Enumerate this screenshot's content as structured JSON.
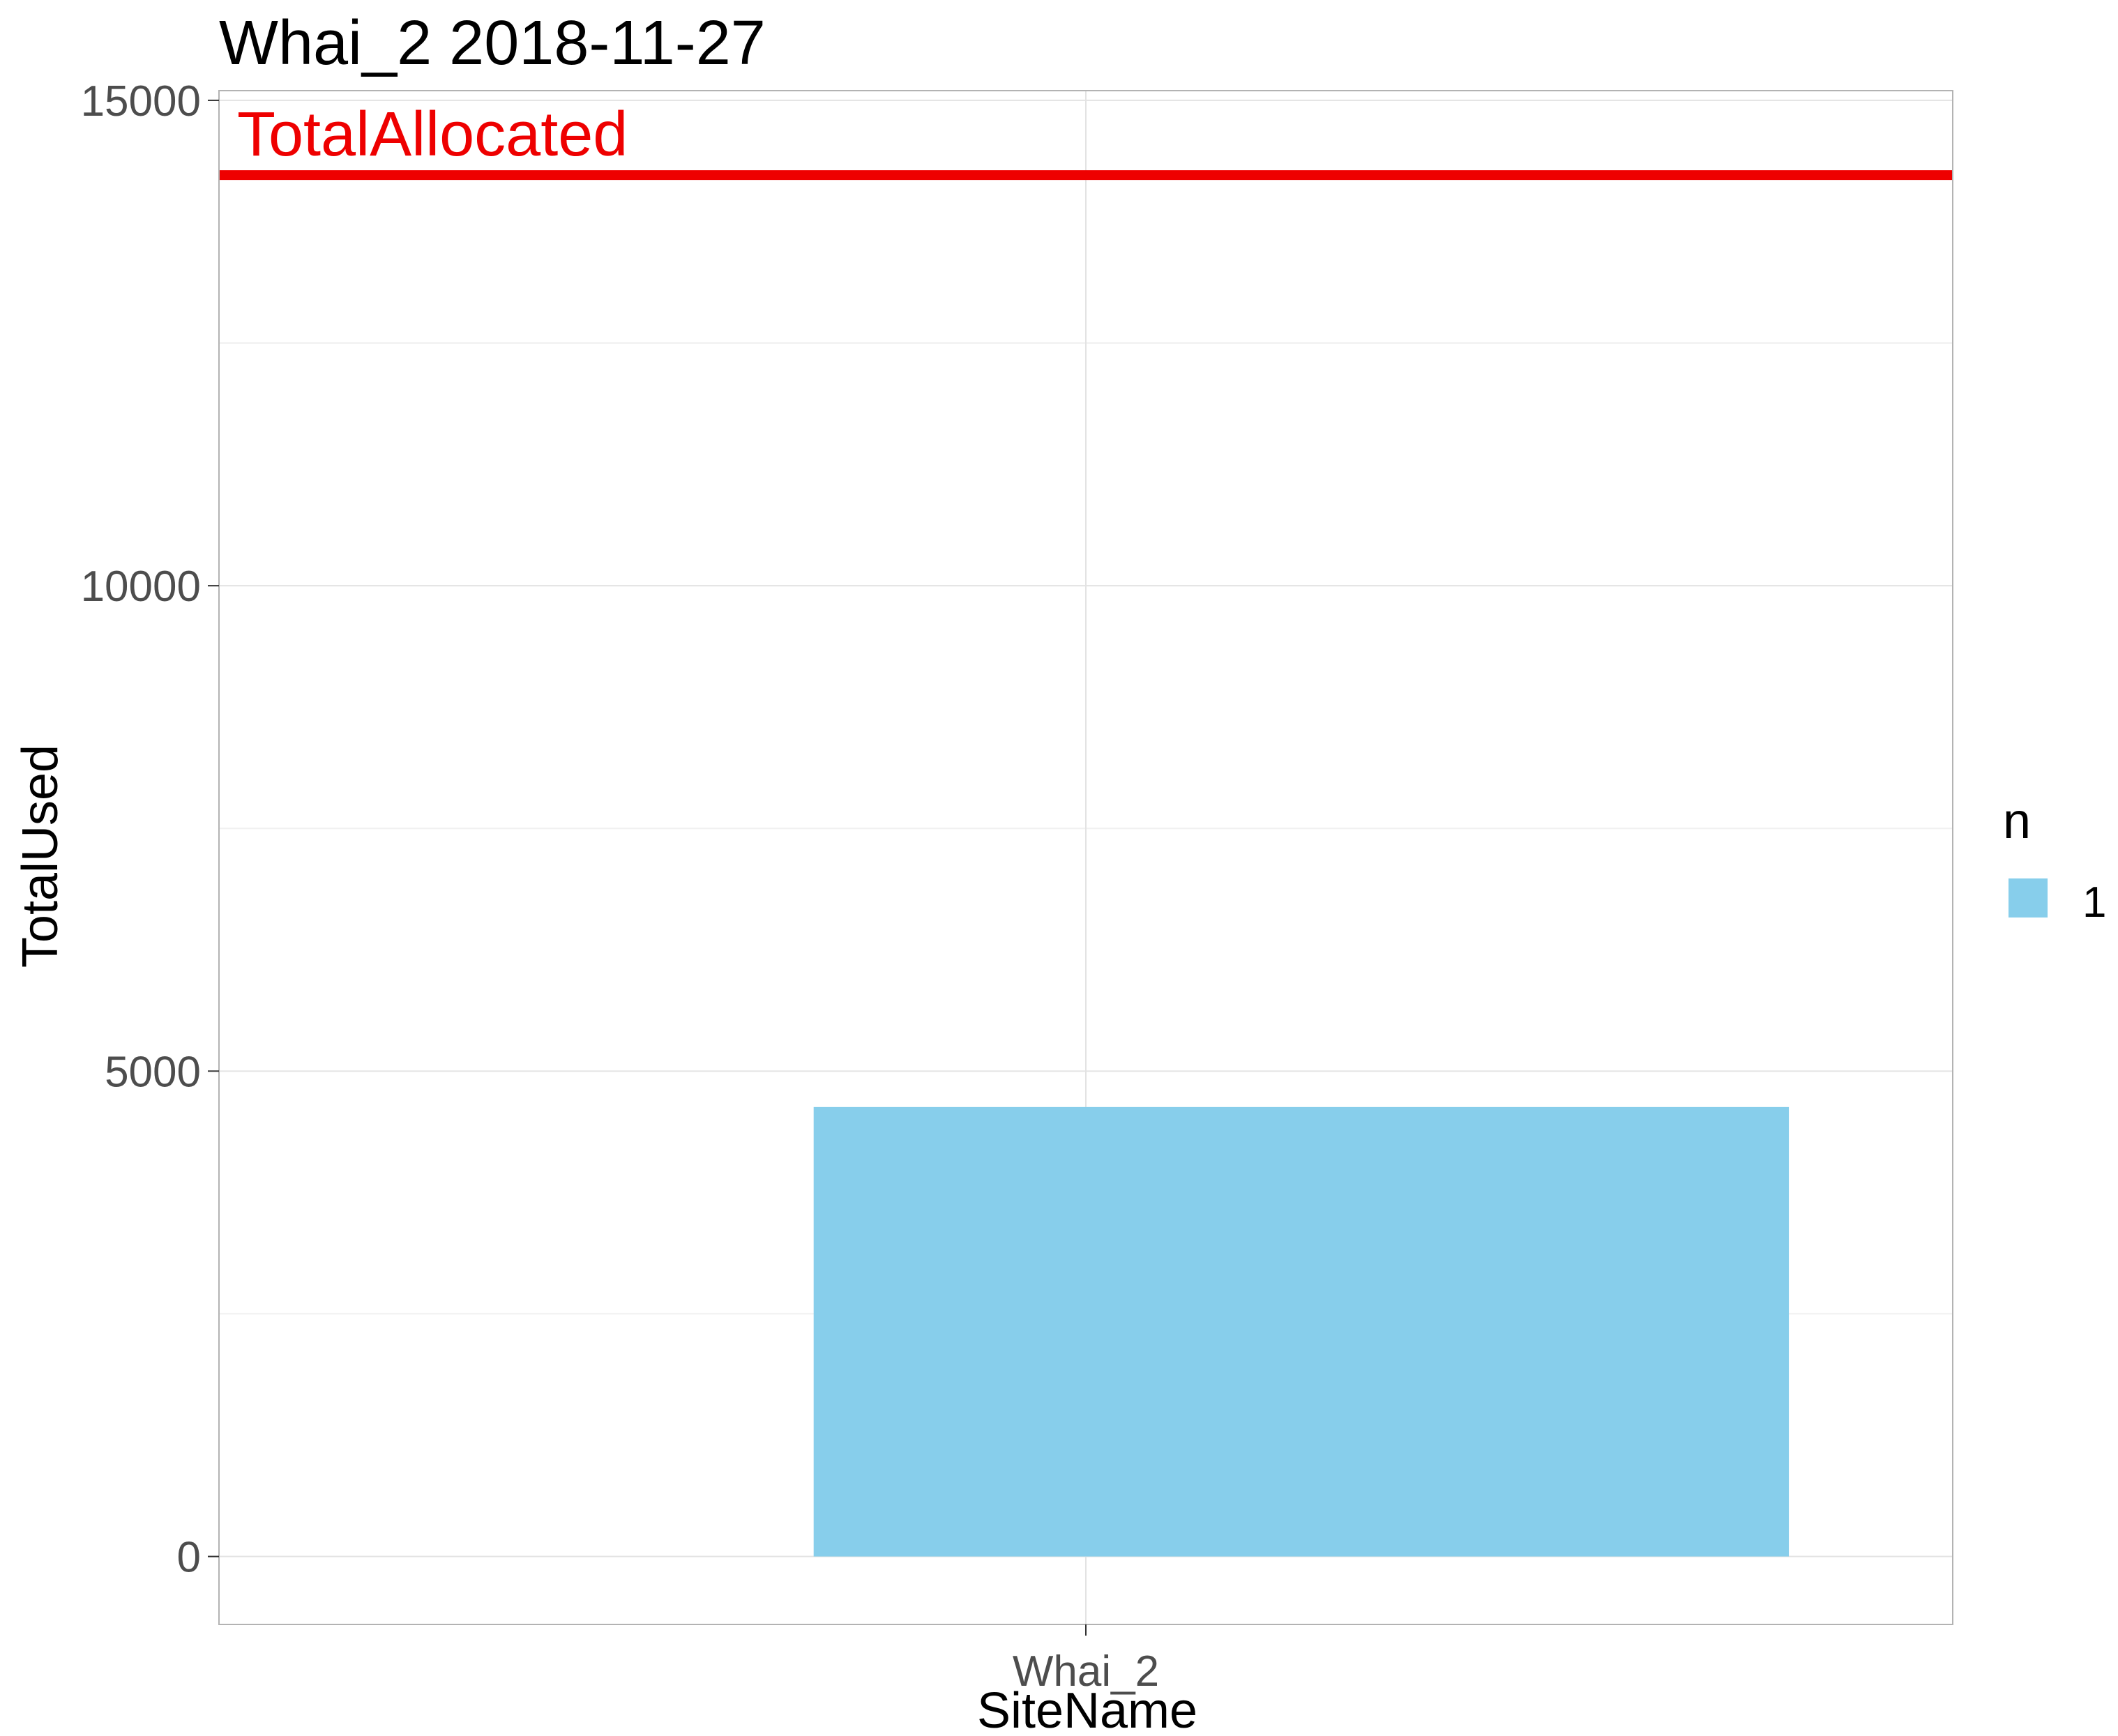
{
  "chart_data": {
    "type": "bar",
    "title": "Whai_2 2018-11-27",
    "xlabel": "SiteName",
    "ylabel": "TotalUsed",
    "categories": [
      "Whai_2"
    ],
    "series": [
      {
        "name": "1",
        "values": [
          4630
        ]
      }
    ],
    "ylim": [
      -700,
      15100
    ],
    "yticks": [
      0,
      5000,
      10000,
      15000
    ],
    "ytick_labels": [
      "0",
      "5000",
      "10000",
      "15000"
    ],
    "hline": {
      "value": 14230,
      "label": "TotalAllocated",
      "color": "#ee0000"
    },
    "legend": {
      "title": "n",
      "position": "right",
      "entries": [
        "1"
      ]
    },
    "bar_color": "#87ceeb",
    "grid": true
  }
}
